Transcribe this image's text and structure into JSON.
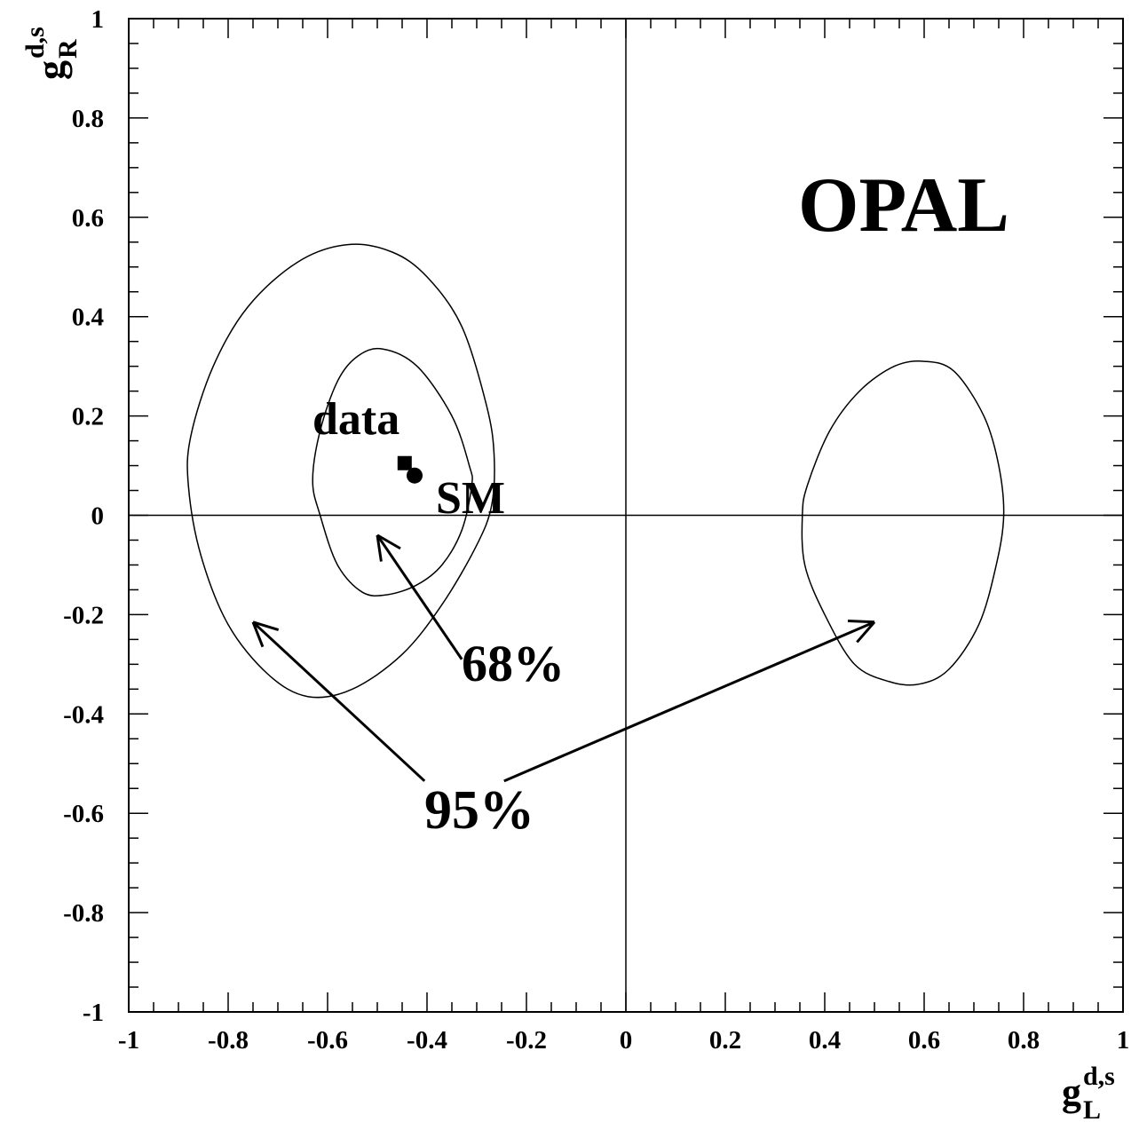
{
  "chart_data": {
    "type": "scatter",
    "title": "",
    "xlabel": {
      "symbol": "g",
      "subscript": "L",
      "superscript": "d,s"
    },
    "ylabel": {
      "symbol": "g",
      "subscript": "R",
      "superscript": "d,s"
    },
    "xlim": [
      -1,
      1
    ],
    "ylim": [
      -1,
      1
    ],
    "x_ticks": [
      -1,
      -0.8,
      -0.6,
      -0.4,
      -0.2,
      0,
      0.2,
      0.4,
      0.6,
      0.8,
      1
    ],
    "y_ticks": [
      -1,
      -0.8,
      -0.6,
      -0.4,
      -0.2,
      0,
      0.2,
      0.4,
      0.6,
      0.8,
      1
    ],
    "x_tick_labels": [
      "-1",
      "-0.8",
      "-0.6",
      "-0.4",
      "-0.2",
      "0",
      "0.2",
      "0.4",
      "0.6",
      "0.8",
      "1"
    ],
    "y_tick_labels": [
      "-1",
      "-0.8",
      "-0.6",
      "-0.4",
      "-0.2",
      "0",
      "0.2",
      "0.4",
      "0.6",
      "0.8",
      "1"
    ],
    "grid": false,
    "zero_lines": true,
    "contours": [
      {
        "level": "95%",
        "points": [
          [
            -0.56,
            0.545
          ],
          [
            -0.47,
            0.53
          ],
          [
            -0.4,
            0.48
          ],
          [
            -0.33,
            0.38
          ],
          [
            -0.28,
            0.22
          ],
          [
            -0.265,
            0.12
          ],
          [
            -0.27,
            0.02
          ],
          [
            -0.3,
            -0.06
          ],
          [
            -0.37,
            -0.18
          ],
          [
            -0.45,
            -0.28
          ],
          [
            -0.55,
            -0.35
          ],
          [
            -0.64,
            -0.365
          ],
          [
            -0.72,
            -0.32
          ],
          [
            -0.8,
            -0.22
          ],
          [
            -0.855,
            -0.08
          ],
          [
            -0.88,
            0.06
          ],
          [
            -0.875,
            0.16
          ],
          [
            -0.83,
            0.3
          ],
          [
            -0.76,
            0.42
          ],
          [
            -0.66,
            0.51
          ]
        ]
      },
      {
        "level": "68%",
        "points": [
          [
            -0.49,
            0.335
          ],
          [
            -0.42,
            0.3
          ],
          [
            -0.35,
            0.2
          ],
          [
            -0.315,
            0.1
          ],
          [
            -0.31,
            0.06
          ],
          [
            -0.33,
            -0.03
          ],
          [
            -0.37,
            -0.1
          ],
          [
            -0.42,
            -0.14
          ],
          [
            -0.48,
            -0.16
          ],
          [
            -0.53,
            -0.155
          ],
          [
            -0.58,
            -0.1
          ],
          [
            -0.615,
            0.0
          ],
          [
            -0.63,
            0.07
          ],
          [
            -0.615,
            0.17
          ],
          [
            -0.58,
            0.27
          ],
          [
            -0.54,
            0.32
          ]
        ]
      },
      {
        "level": "95%",
        "points": [
          [
            0.6,
            0.31
          ],
          [
            0.66,
            0.29
          ],
          [
            0.72,
            0.2
          ],
          [
            0.75,
            0.1
          ],
          [
            0.76,
            0.0
          ],
          [
            0.745,
            -0.1
          ],
          [
            0.71,
            -0.22
          ],
          [
            0.65,
            -0.31
          ],
          [
            0.59,
            -0.34
          ],
          [
            0.53,
            -0.335
          ],
          [
            0.46,
            -0.3
          ],
          [
            0.4,
            -0.2
          ],
          [
            0.36,
            -0.1
          ],
          [
            0.355,
            0.0
          ],
          [
            0.365,
            0.06
          ],
          [
            0.41,
            0.17
          ],
          [
            0.47,
            0.25
          ],
          [
            0.54,
            0.3
          ]
        ]
      }
    ],
    "points": [
      {
        "name": "data",
        "marker": "square",
        "x": -0.445,
        "y": 0.105
      },
      {
        "name": "SM",
        "marker": "circle",
        "x": -0.425,
        "y": 0.08
      }
    ],
    "annotations": {
      "experiment": "OPAL",
      "data_label": "data",
      "sm_label": "SM",
      "cl68_label": "68%",
      "cl95_label": "95%"
    },
    "arrows": [
      {
        "label": "68%",
        "from": [
          -0.33,
          -0.29
        ],
        "to": [
          -0.5,
          -0.04
        ]
      },
      {
        "label": "95%",
        "from": [
          -0.405,
          -0.535
        ],
        "to": [
          -0.75,
          -0.215
        ]
      },
      {
        "label": "95%",
        "from": [
          -0.245,
          -0.535
        ],
        "to": [
          0.5,
          -0.215
        ]
      }
    ],
    "colors": {
      "line": "#000000",
      "background": "#ffffff"
    }
  }
}
